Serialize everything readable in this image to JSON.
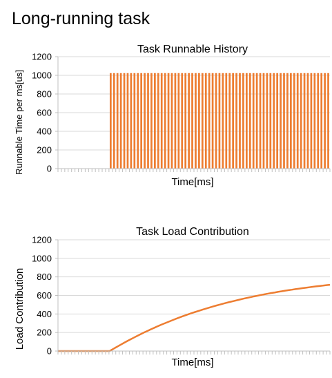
{
  "page": {
    "title": "Long-running task"
  },
  "chart_data": [
    {
      "type": "bar",
      "title": "Task Runnable History",
      "xlabel": "Time[ms]",
      "ylabel": "Runnable Time per ms[us]",
      "ylim": [
        0,
        1200
      ],
      "yticks": [
        0,
        200,
        400,
        600,
        800,
        1000,
        1200
      ],
      "grid": true,
      "legend": "none",
      "x": [
        0,
        1,
        2,
        3,
        4,
        5,
        6,
        7,
        8,
        9,
        10,
        11,
        12,
        13,
        14,
        15,
        16,
        17,
        18,
        19,
        20,
        21,
        22,
        23,
        24,
        25,
        26,
        27,
        28,
        29,
        30,
        31,
        32,
        33,
        34,
        35,
        36,
        37,
        38,
        39,
        40,
        41,
        42,
        43,
        44,
        45,
        46,
        47,
        48,
        49,
        50,
        51,
        52,
        53,
        54,
        55,
        56,
        57,
        58,
        59,
        60,
        61,
        62,
        63,
        64,
        65,
        66,
        67,
        68,
        69,
        70,
        71,
        72,
        73,
        74,
        75,
        76,
        77,
        78,
        79
      ],
      "values": [
        0,
        0,
        0,
        0,
        0,
        0,
        0,
        0,
        0,
        0,
        0,
        0,
        0,
        0,
        0,
        1024,
        1024,
        1024,
        1024,
        1024,
        1024,
        1024,
        1024,
        1024,
        1024,
        1024,
        1024,
        1024,
        1024,
        1024,
        1024,
        1024,
        1024,
        1024,
        1024,
        1024,
        1024,
        1024,
        1024,
        1024,
        1024,
        1024,
        1024,
        1024,
        1024,
        1024,
        1024,
        1024,
        1024,
        1024,
        1024,
        1024,
        1024,
        1024,
        1024,
        1024,
        1024,
        1024,
        1024,
        1024,
        1024,
        1024,
        1024,
        1024,
        1024,
        1024,
        1024,
        1024,
        1024,
        1024,
        1024,
        1024,
        1024,
        1024,
        1024,
        1024,
        1024,
        1024,
        1024,
        1024
      ],
      "color": "#ED7D31"
    },
    {
      "type": "line",
      "title": "Task Load Contribution",
      "xlabel": "Time[ms]",
      "ylabel": "Load Contribution",
      "ylim": [
        0,
        1200
      ],
      "yticks": [
        0,
        200,
        400,
        600,
        800,
        1000,
        1200
      ],
      "grid": true,
      "legend": "none",
      "x": [
        0,
        1,
        2,
        3,
        4,
        5,
        6,
        7,
        8,
        9,
        10,
        11,
        12,
        13,
        14,
        15,
        16,
        17,
        18,
        19,
        20,
        21,
        22,
        23,
        24,
        25,
        26,
        27,
        28,
        29,
        30,
        31,
        32,
        33,
        34,
        35,
        36,
        37,
        38,
        39,
        40,
        41,
        42,
        43,
        44,
        45,
        46,
        47,
        48,
        49,
        50,
        51,
        52,
        53,
        54,
        55,
        56,
        57,
        58,
        59,
        60,
        61,
        62,
        63,
        64,
        65,
        66,
        67,
        68,
        69,
        70,
        71,
        72,
        73,
        74,
        75,
        76,
        77,
        78,
        79
      ],
      "values": [
        0,
        0,
        0,
        0,
        0,
        0,
        0,
        0,
        0,
        0,
        0,
        0,
        0,
        0,
        0,
        0,
        22,
        43,
        64,
        85,
        105,
        125,
        144,
        163,
        182,
        200,
        217,
        235,
        251,
        268,
        284,
        299,
        314,
        329,
        344,
        358,
        372,
        385,
        398,
        411,
        423,
        435,
        447,
        458,
        469,
        480,
        491,
        501,
        511,
        521,
        530,
        539,
        548,
        557,
        566,
        574,
        582,
        590,
        597,
        605,
        612,
        619,
        626,
        632,
        639,
        645,
        651,
        657,
        662,
        668,
        673,
        678,
        683,
        688,
        693,
        698,
        702,
        706,
        711,
        715
      ],
      "color": "#ED7D31"
    }
  ]
}
